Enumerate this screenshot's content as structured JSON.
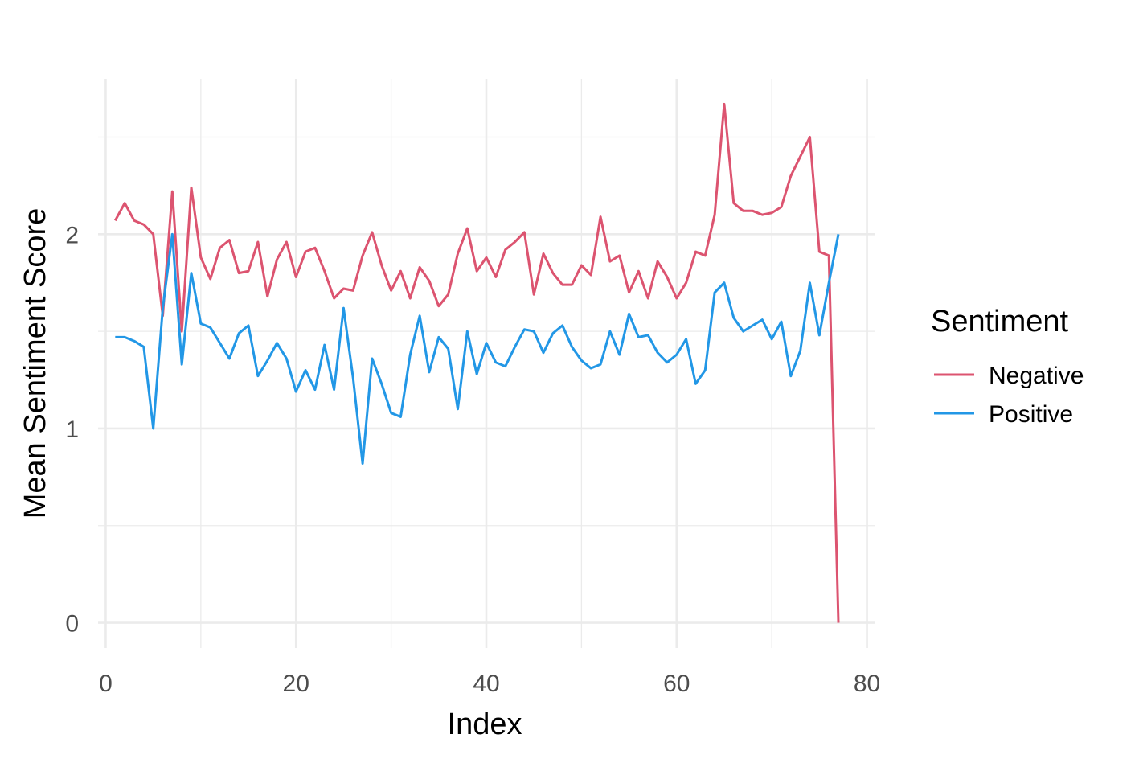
{
  "chart_data": {
    "type": "line",
    "title": "",
    "xlabel": "Index",
    "ylabel": "Mean Sentiment Score",
    "xlim": [
      -0.8,
      80.8
    ],
    "ylim": [
      -0.13,
      2.8
    ],
    "x_ticks": [
      0,
      20,
      40,
      60,
      80
    ],
    "y_ticks": [
      0,
      1,
      2
    ],
    "x_minor_ticks": [
      10,
      30,
      50,
      70
    ],
    "y_minor_ticks": [
      0.5,
      1.5,
      2.5
    ],
    "grid": true,
    "legend": {
      "title": "Sentiment",
      "position": "right"
    },
    "series": [
      {
        "name": "Negative",
        "color": "#dc5470",
        "x": [
          1,
          2,
          3,
          4,
          5,
          6,
          7,
          8,
          9,
          10,
          11,
          12,
          13,
          14,
          15,
          16,
          17,
          18,
          19,
          20,
          21,
          22,
          23,
          24,
          25,
          26,
          27,
          28,
          29,
          30,
          31,
          32,
          33,
          34,
          35,
          36,
          37,
          38,
          39,
          40,
          41,
          42,
          43,
          44,
          45,
          46,
          47,
          48,
          49,
          50,
          51,
          52,
          53,
          54,
          55,
          56,
          57,
          58,
          59,
          60,
          61,
          62,
          63,
          64,
          65,
          66,
          67,
          68,
          69,
          70,
          71,
          72,
          73,
          74,
          75,
          76,
          77
        ],
        "values": [
          2.07,
          2.16,
          2.07,
          2.05,
          2.0,
          1.58,
          2.22,
          1.5,
          2.24,
          1.88,
          1.77,
          1.93,
          1.97,
          1.8,
          1.81,
          1.96,
          1.68,
          1.87,
          1.96,
          1.78,
          1.91,
          1.93,
          1.81,
          1.67,
          1.72,
          1.71,
          1.89,
          2.01,
          1.84,
          1.71,
          1.81,
          1.67,
          1.83,
          1.76,
          1.63,
          1.69,
          1.9,
          2.03,
          1.81,
          1.88,
          1.78,
          1.92,
          1.96,
          2.01,
          1.69,
          1.9,
          1.8,
          1.74,
          1.74,
          1.84,
          1.79,
          2.09,
          1.86,
          1.89,
          1.7,
          1.81,
          1.67,
          1.86,
          1.78,
          1.67,
          1.75,
          1.91,
          1.89,
          2.1,
          2.67,
          2.16,
          2.12,
          2.12,
          2.1,
          2.11,
          2.14,
          2.3,
          2.4,
          2.5,
          1.91,
          1.89,
          0.0
        ]
      },
      {
        "name": "Positive",
        "color": "#2297e6",
        "x": [
          1,
          2,
          3,
          4,
          5,
          6,
          7,
          8,
          9,
          10,
          11,
          12,
          13,
          14,
          15,
          16,
          17,
          18,
          19,
          20,
          21,
          22,
          23,
          24,
          25,
          26,
          27,
          28,
          29,
          30,
          31,
          32,
          33,
          34,
          35,
          36,
          37,
          38,
          39,
          40,
          41,
          42,
          43,
          44,
          45,
          46,
          47,
          48,
          49,
          50,
          51,
          52,
          53,
          54,
          55,
          56,
          57,
          58,
          59,
          60,
          61,
          62,
          63,
          64,
          65,
          66,
          67,
          68,
          69,
          70,
          71,
          72,
          73,
          74,
          75,
          76,
          77
        ],
        "values": [
          1.47,
          1.47,
          1.45,
          1.42,
          1.0,
          1.62,
          2.0,
          1.33,
          1.8,
          1.54,
          1.52,
          1.44,
          1.36,
          1.49,
          1.53,
          1.27,
          1.35,
          1.44,
          1.36,
          1.19,
          1.3,
          1.2,
          1.43,
          1.2,
          1.62,
          1.26,
          0.82,
          1.36,
          1.23,
          1.08,
          1.06,
          1.38,
          1.58,
          1.29,
          1.47,
          1.41,
          1.1,
          1.5,
          1.28,
          1.44,
          1.34,
          1.32,
          1.42,
          1.51,
          1.5,
          1.39,
          1.49,
          1.53,
          1.42,
          1.35,
          1.31,
          1.33,
          1.5,
          1.38,
          1.59,
          1.47,
          1.48,
          1.39,
          1.34,
          1.38,
          1.46,
          1.23,
          1.3,
          1.7,
          1.75,
          1.57,
          1.5,
          1.53,
          1.56,
          1.46,
          1.55,
          1.27,
          1.4,
          1.75,
          1.48,
          1.75,
          2.0
        ]
      }
    ]
  }
}
